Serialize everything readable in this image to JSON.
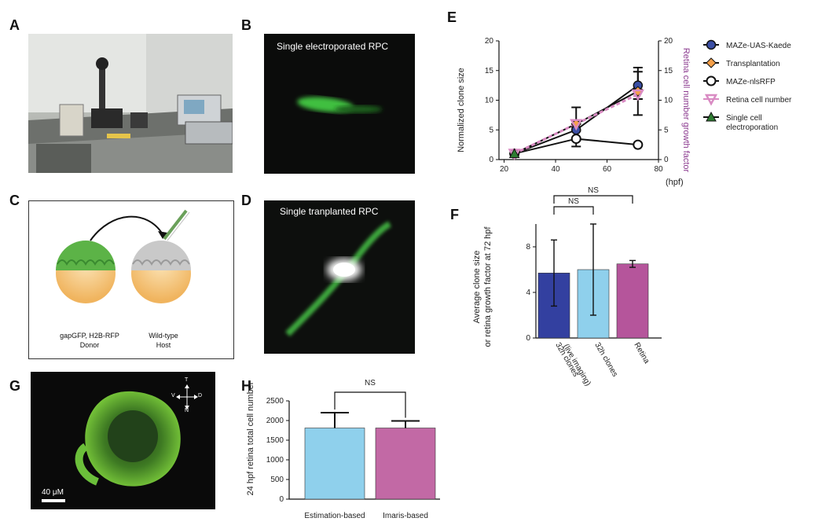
{
  "panels": {
    "A": {
      "label": "A"
    },
    "B": {
      "label": "B",
      "caption": "Single electroporated RPC"
    },
    "C": {
      "label": "C",
      "donor_label_1": "gapGFP, H2B-RFP",
      "donor_label_2": "Donor",
      "host_label_1": "Wild-type",
      "host_label_2": "Host"
    },
    "D": {
      "label": "D",
      "caption": "Single tranplanted RPC"
    },
    "E": {
      "label": "E"
    },
    "F": {
      "label": "F"
    },
    "G": {
      "label": "G",
      "scale_bar": "40 μM",
      "compass": {
        "top": "T",
        "left": "V",
        "right": "D",
        "bottom": "N"
      }
    },
    "H": {
      "label": "H"
    }
  },
  "colors": {
    "blue_dark": "#3340a0",
    "blue_light": "#8fd0ec",
    "magenta": "#b5559b",
    "pink": "#d98bc3",
    "orange": "#f5a04a",
    "green_tri": "#2e7d32",
    "purple_axis": "#8b3a8f"
  },
  "chart_data": [
    {
      "panel": "E",
      "type": "line",
      "xlabel": "(hpf)",
      "ylabel": "Normalized clone size",
      "y2label": "Retina cell number growth factor",
      "x_ticks": [
        20,
        40,
        60,
        80
      ],
      "y_ticks": [
        0,
        5,
        10,
        15,
        20
      ],
      "y2_ticks": [
        0,
        5,
        10,
        15,
        20
      ],
      "xlim": [
        18,
        80
      ],
      "ylim": [
        0,
        20
      ],
      "y2lim": [
        0,
        20
      ],
      "legend_position": "right",
      "series": [
        {
          "name": "MAZe-UAS-Kaede",
          "marker": "circle-filled",
          "color": "#3b4fa5",
          "x": [
            24,
            48,
            72
          ],
          "y": [
            1,
            5,
            12.5
          ],
          "err": [
            0,
            1.6,
            2.3
          ]
        },
        {
          "name": "Transplantation",
          "marker": "diamond",
          "color": "#f5a04a",
          "x": [
            24,
            48,
            72
          ],
          "y": [
            1,
            6,
            11.5
          ],
          "err": [
            0,
            2.8,
            4
          ]
        },
        {
          "name": "MAZe-nlsRFP",
          "marker": "circle-open",
          "color": "#111111",
          "x": [
            24,
            48,
            72
          ],
          "y": [
            1,
            3.5,
            2.5
          ],
          "err": [
            0,
            1.3,
            0
          ]
        },
        {
          "name": "Retina cell number",
          "marker": "triangle-down",
          "color": "#d98bc3",
          "x": [
            24,
            48,
            72
          ],
          "y": [
            1,
            6,
            11
          ],
          "err": [
            0,
            0.5,
            0.8
          ]
        },
        {
          "name": "Single cell electroporation",
          "legend_lines": [
            "Single cell",
            "electroporation"
          ],
          "marker": "triangle-up",
          "color": "#2e7d32",
          "x": [
            24
          ],
          "y": [
            1
          ],
          "err": [
            0
          ]
        }
      ]
    },
    {
      "panel": "F",
      "type": "bar",
      "ylabel_lines": [
        "Average clone size",
        "or retina growth factor at 72 hpf"
      ],
      "categories": [
        "32h clones (live imaging)",
        "32h clones",
        "Retina"
      ],
      "category_lines": [
        [
          "32h clones",
          "(live imaging)"
        ],
        [
          "32h clones"
        ],
        [
          "Retina"
        ]
      ],
      "values": [
        5.7,
        6.0,
        6.5
      ],
      "errors": [
        2.9,
        4.0,
        0.3
      ],
      "colors": [
        "#3340a0",
        "#8fd0ec",
        "#b5559b"
      ],
      "y_ticks": [
        0,
        4,
        8
      ],
      "ylim": [
        0,
        10
      ],
      "significance": [
        {
          "from": 0,
          "to": 1,
          "label": "NS"
        },
        {
          "from": 0,
          "to": 2,
          "label": "NS"
        }
      ]
    },
    {
      "panel": "H",
      "type": "bar",
      "ylabel": "24 hpf retina total cell number",
      "categories": [
        "Estimation-based",
        "Imaris-based"
      ],
      "values": [
        1810,
        1810
      ],
      "errors": [
        390,
        180
      ],
      "colors": [
        "#8fd0ec",
        "#c269a5"
      ],
      "y_ticks": [
        0,
        500,
        1000,
        1500,
        2000,
        2500
      ],
      "ylim": [
        0,
        2500
      ],
      "significance": [
        {
          "from": 0,
          "to": 1,
          "label": "NS"
        }
      ]
    }
  ]
}
